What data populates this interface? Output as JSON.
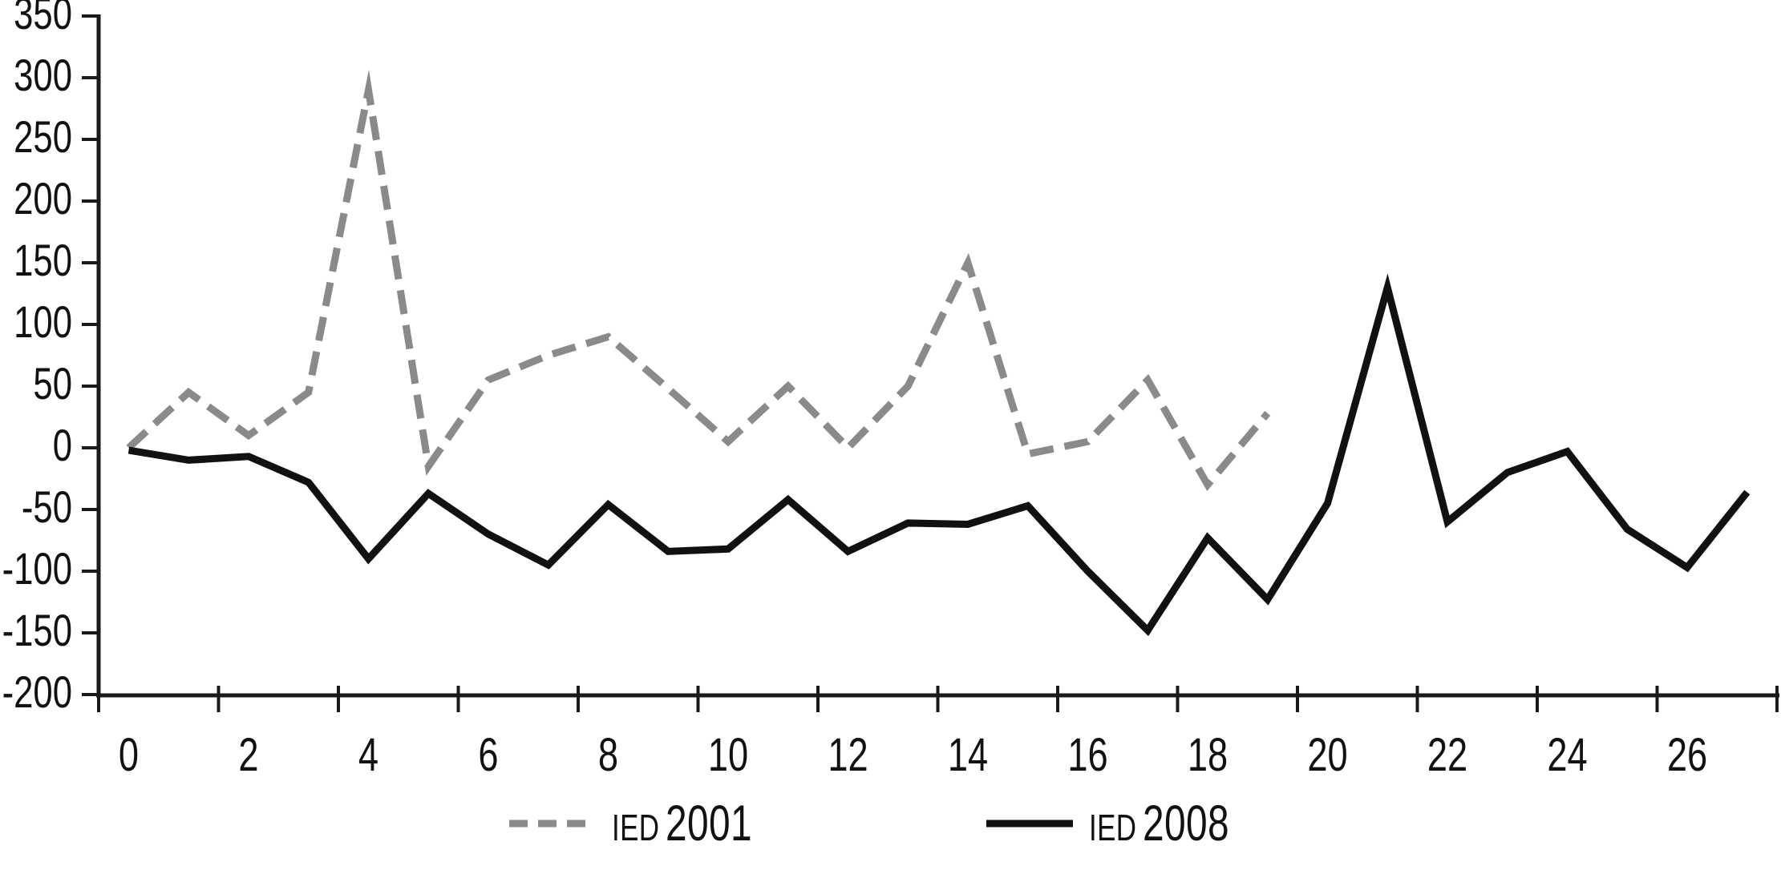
{
  "chart_data": {
    "type": "line",
    "title": "",
    "xlabel": "",
    "ylabel": "",
    "ylim": [
      -200,
      350
    ],
    "xlim": [
      0,
      27
    ],
    "grid": false,
    "legend_position": "bottom",
    "y_axis": {
      "ticks": [
        350,
        300,
        250,
        200,
        150,
        100,
        50,
        0,
        -50,
        -100,
        -150,
        -200
      ]
    },
    "x_axis": {
      "labels": [
        0,
        2,
        4,
        6,
        8,
        10,
        12,
        14,
        16,
        18,
        20,
        22,
        24,
        26
      ],
      "boundary_tick_count": 15
    },
    "series": [
      {
        "name": "IED 2001",
        "style": "dashed",
        "color": "#8a8a8a",
        "x": [
          0,
          1,
          2,
          3,
          4,
          5,
          6,
          7,
          8,
          9,
          10,
          11,
          12,
          13,
          14,
          15,
          16,
          17,
          18,
          19
        ],
        "values": [
          0,
          45,
          10,
          45,
          290,
          -15,
          55,
          75,
          90,
          48,
          5,
          50,
          0,
          50,
          150,
          -5,
          5,
          55,
          -30,
          28
        ]
      },
      {
        "name": "IED 2008",
        "style": "solid",
        "color": "#111111",
        "x": [
          0,
          1,
          2,
          3,
          4,
          5,
          6,
          7,
          8,
          9,
          10,
          11,
          12,
          13,
          14,
          15,
          16,
          17,
          18,
          19,
          20,
          21,
          22,
          23,
          24,
          25,
          26,
          27
        ],
        "values": [
          -2,
          -10,
          -7,
          -28,
          -90,
          -37,
          -70,
          -95,
          -46,
          -84,
          -82,
          -42,
          -84,
          -61,
          -62,
          -47,
          -100,
          -148,
          -73,
          -123,
          -45,
          130,
          -60,
          -20,
          -3,
          -66,
          -97,
          -36
        ]
      }
    ],
    "axis_color": "#1a1a1a"
  },
  "legend": {
    "items": [
      {
        "abbr": "IED",
        "year": "2001"
      },
      {
        "abbr": "IED",
        "year": "2008"
      }
    ]
  }
}
